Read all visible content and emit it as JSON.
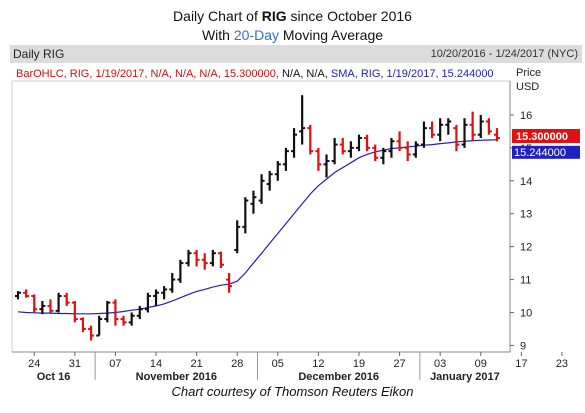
{
  "header": {
    "title_line1_pre": "Daily Chart of ",
    "title_line1_ticker": "RIG",
    "title_line1_post": " since October 2016",
    "title_line2_pre": "With ",
    "title_line2_hl": "20-Day",
    "title_line2_post": " Moving Average",
    "panel_label": "Daily RIG",
    "date_range": "10/20/2016 - 1/24/2017 (NYC)",
    "price_label": "Price",
    "currency_label": "USD"
  },
  "legend": {
    "bar_part1": "BarOHLC, RIG, 1/19/2017, N/A, N/A, N/A, 15.300000,",
    "bar_part2": " N/A, N/A,",
    "sma_part": " SMA, RIG, 1/19/2017, 15.244000"
  },
  "badges": {
    "close": "15.300000",
    "sma": "15.244000"
  },
  "credit": "Chart courtesy of Thomson Reuters Eikon",
  "colors": {
    "up": "#111111",
    "down": "#e01010",
    "sma": "#2020c0",
    "close_badge": "#e01010",
    "sma_badge": "#2020c0",
    "grid": "#bbbbbb"
  },
  "chart_data": {
    "type": "bar",
    "title": "Daily Chart of RIG since October 2016",
    "subtitle": "With 20-Day Moving Average",
    "ylabel": "Price USD",
    "ylim": [
      8.8,
      17.0
    ],
    "y_ticks": [
      9,
      10,
      11,
      12,
      13,
      14,
      15,
      16
    ],
    "grid": false,
    "x_ticks": [
      "24",
      "31",
      "07",
      "14",
      "21",
      "28",
      "05",
      "12",
      "19",
      "27",
      "03",
      "09",
      "17",
      "23"
    ],
    "months": [
      "Oct 16",
      "November 2016",
      "December 2016",
      "January 2017"
    ],
    "series": [
      {
        "name": "BarOHLC",
        "bars": [
          [
            10.5,
            10.65,
            10.4,
            10.6
          ],
          [
            10.6,
            10.7,
            10.45,
            10.5
          ],
          [
            10.5,
            10.55,
            10.0,
            10.1
          ],
          [
            10.1,
            10.35,
            9.95,
            10.2
          ],
          [
            10.2,
            10.4,
            10.0,
            10.05
          ],
          [
            10.05,
            10.6,
            10.0,
            10.5
          ],
          [
            10.5,
            10.6,
            10.2,
            10.3
          ],
          [
            10.3,
            10.35,
            9.7,
            9.8
          ],
          [
            9.8,
            9.85,
            9.4,
            9.5
          ],
          [
            9.5,
            9.6,
            9.15,
            9.3
          ],
          [
            9.3,
            9.9,
            9.3,
            9.8
          ],
          [
            9.8,
            10.35,
            9.7,
            10.3
          ],
          [
            10.3,
            10.4,
            9.6,
            9.8
          ],
          [
            9.8,
            9.9,
            9.6,
            9.7
          ],
          [
            9.7,
            10.0,
            9.6,
            9.9
          ],
          [
            9.9,
            10.2,
            9.8,
            10.1
          ],
          [
            10.1,
            10.6,
            10.0,
            10.5
          ],
          [
            10.5,
            10.7,
            10.2,
            10.6
          ],
          [
            10.6,
            10.8,
            10.4,
            10.7
          ],
          [
            10.7,
            11.2,
            10.6,
            11.0
          ],
          [
            11.0,
            11.6,
            10.9,
            11.5
          ],
          [
            11.5,
            11.9,
            11.4,
            11.8
          ],
          [
            11.8,
            11.9,
            11.4,
            11.6
          ],
          [
            11.6,
            11.8,
            11.3,
            11.5
          ],
          [
            11.5,
            11.9,
            11.4,
            11.8
          ],
          [
            11.8,
            11.85,
            11.35,
            11.45
          ],
          [
            11.0,
            11.2,
            10.6,
            10.8
          ],
          [
            11.9,
            12.8,
            11.8,
            12.6
          ],
          [
            12.6,
            13.5,
            12.4,
            13.4
          ],
          [
            13.3,
            13.7,
            13.0,
            13.5
          ],
          [
            13.4,
            14.2,
            13.3,
            14.0
          ],
          [
            13.9,
            14.3,
            13.7,
            14.2
          ],
          [
            14.2,
            14.6,
            14.0,
            14.5
          ],
          [
            14.5,
            15.0,
            14.3,
            14.9
          ],
          [
            14.9,
            15.6,
            14.7,
            15.4
          ],
          [
            15.5,
            16.6,
            15.1,
            15.6
          ],
          [
            15.6,
            15.7,
            14.8,
            14.9
          ],
          [
            14.9,
            15.0,
            14.3,
            14.5
          ],
          [
            14.5,
            14.8,
            14.1,
            14.6
          ],
          [
            14.6,
            15.3,
            14.5,
            15.1
          ],
          [
            15.1,
            15.3,
            14.8,
            14.9
          ],
          [
            14.9,
            15.2,
            14.7,
            15.0
          ],
          [
            15.0,
            15.4,
            14.9,
            15.3
          ],
          [
            15.3,
            15.4,
            14.9,
            15.0
          ],
          [
            15.0,
            15.1,
            14.6,
            14.7
          ],
          [
            14.7,
            15.0,
            14.5,
            14.9
          ],
          [
            14.9,
            15.3,
            14.7,
            15.2
          ],
          [
            15.2,
            15.5,
            14.9,
            15.0
          ],
          [
            15.0,
            15.2,
            14.6,
            14.8
          ],
          [
            14.8,
            15.2,
            14.7,
            15.1
          ],
          [
            15.1,
            15.8,
            15.0,
            15.6
          ],
          [
            15.6,
            15.8,
            15.3,
            15.4
          ],
          [
            15.4,
            15.9,
            15.2,
            15.7
          ],
          [
            15.7,
            15.9,
            15.4,
            15.8
          ],
          [
            15.6,
            15.7,
            14.9,
            15.1
          ],
          [
            15.1,
            15.9,
            15.0,
            15.7
          ],
          [
            15.7,
            16.1,
            15.2,
            15.4
          ],
          [
            15.4,
            16.0,
            15.3,
            15.8
          ],
          [
            15.8,
            15.9,
            15.4,
            15.5
          ],
          [
            15.4,
            15.6,
            15.2,
            15.3
          ]
        ]
      },
      {
        "name": "SMA",
        "values": [
          10.02,
          10.0,
          9.99,
          9.98,
          9.98,
          9.97,
          9.97,
          9.96,
          9.96,
          9.96,
          9.97,
          9.98,
          10.0,
          10.03,
          10.07,
          10.1,
          10.15,
          10.2,
          10.26,
          10.35,
          10.45,
          10.55,
          10.64,
          10.7,
          10.77,
          10.83,
          10.86,
          10.95,
          11.2,
          11.5,
          11.8,
          12.1,
          12.4,
          12.7,
          13.0,
          13.3,
          13.6,
          13.85,
          14.05,
          14.25,
          14.4,
          14.55,
          14.7,
          14.8,
          14.88,
          14.93,
          14.98,
          15.0,
          15.03,
          15.05,
          15.08,
          15.1,
          15.13,
          15.15,
          15.18,
          15.2,
          15.22,
          15.23,
          15.24,
          15.244
        ]
      }
    ]
  }
}
